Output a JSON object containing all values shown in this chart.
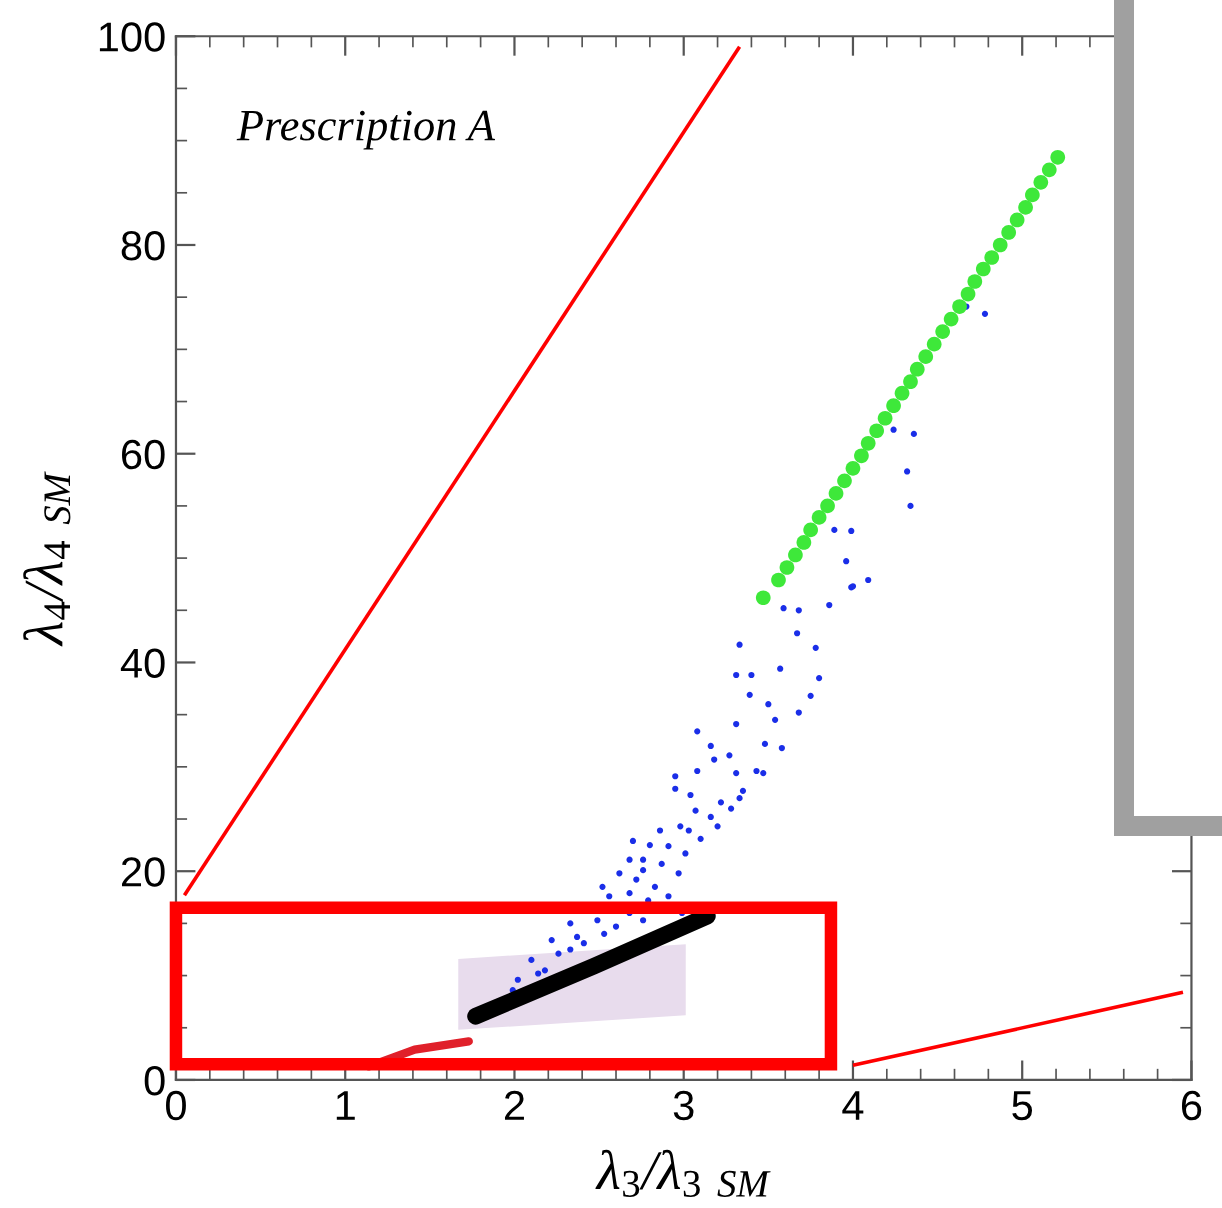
{
  "chart_data": {
    "type": "scatter",
    "xlabel": "λ$_{3}$/λ$_{3}$ $_{SM}$",
    "ylabel": "λ$_{4}$/λ$_{4}$ $_{SM}$",
    "annotations": [
      "Prescription A"
    ],
    "xlim": [
      0,
      6
    ],
    "ylim": [
      0,
      100
    ],
    "xticks": [
      0,
      {
        "value": 0.2,
        "label": null
      },
      {
        "value": 0.4,
        "label": null
      },
      {
        "value": 0.6,
        "label": null
      },
      {
        "value": 0.8,
        "label": null
      },
      1,
      {
        "value": 1.2,
        "label": null
      },
      {
        "value": 1.4,
        "label": null
      },
      {
        "value": 1.6,
        "label": null
      },
      {
        "value": 1.8,
        "label": null
      },
      2,
      {
        "value": 2.2,
        "label": null
      },
      {
        "value": 2.4,
        "label": null
      },
      {
        "value": 2.6,
        "label": null
      },
      {
        "value": 2.8,
        "label": null
      },
      3,
      {
        "value": 3.2,
        "label": null
      },
      {
        "value": 3.4,
        "label": null
      },
      {
        "value": 3.6,
        "label": null
      },
      {
        "value": 3.8,
        "label": null
      },
      4,
      {
        "value": 4.2,
        "label": null
      },
      {
        "value": 4.4,
        "label": null
      },
      {
        "value": 4.6,
        "label": null
      },
      {
        "value": 4.8,
        "label": null
      },
      5,
      {
        "value": 5.2,
        "label": null
      },
      {
        "value": 5.4,
        "label": null
      },
      {
        "value": 5.6,
        "label": null
      },
      {
        "value": 5.8,
        "label": null
      },
      6
    ],
    "yticks": [
      0,
      {
        "value": 5,
        "label": null
      },
      {
        "value": 10,
        "label": null
      },
      {
        "value": 15,
        "label": null
      },
      20,
      {
        "value": 25,
        "label": null
      },
      {
        "value": 30,
        "label": null
      },
      {
        "value": 35,
        "label": null
      },
      40,
      {
        "value": 45,
        "label": null
      },
      {
        "value": 50,
        "label": null
      },
      {
        "value": 55,
        "label": null
      },
      60,
      {
        "value": 65,
        "label": null
      },
      {
        "value": 70,
        "label": null
      },
      {
        "value": 75,
        "label": null
      },
      80,
      {
        "value": 85,
        "label": null
      },
      {
        "value": 90,
        "label": null
      },
      {
        "value": 95,
        "label": null
      },
      100
    ],
    "grid": false,
    "series": [
      {
        "type": "line",
        "color": "#ff0000",
        "x": [
          0.05,
          3.33
        ],
        "values": [
          17.7,
          99.0
        ]
      },
      {
        "type": "line",
        "color": "#ff0000",
        "x": [
          4.0,
          5.95
        ],
        "values": [
          1.4,
          8.4
        ]
      },
      {
        "type": "line",
        "color": "#e0202a",
        "x": [
          1.14,
          1.41,
          1.73
        ],
        "values": [
          1.3,
          2.9,
          3.7
        ]
      },
      {
        "type": "scatter",
        "color": "#1a2ee8",
        "x": [
          4.67,
          4.78,
          4.24,
          4.36,
          4.32,
          4.34,
          3.89,
          3.99,
          3.96,
          3.99,
          4.09,
          3.59,
          3.68,
          3.86,
          4.0,
          3.33,
          3.57,
          3.78,
          3.8,
          3.31,
          3.4,
          3.67,
          3.39,
          3.75,
          3.5,
          3.54,
          3.31,
          3.08,
          3.68,
          3.48,
          3.58,
          3.27,
          3.16,
          3.18,
          3.08,
          2.95,
          3.31,
          3.43,
          3.47,
          3.35,
          3.33,
          3.04,
          2.95,
          3.22,
          3.28,
          3.07,
          3.16,
          3.2,
          2.86,
          2.98,
          3.03,
          3.1,
          2.8,
          2.91,
          2.7,
          3.01,
          2.87,
          2.76,
          2.68,
          2.97,
          2.52,
          2.62,
          2.72,
          2.83,
          2.56,
          2.68,
          2.79,
          2.91,
          2.76,
          2.33,
          2.49,
          2.68,
          2.22,
          2.37,
          2.53,
          2.1,
          2.26,
          2.02,
          1.99,
          2.18,
          2.33,
          2.6,
          2.76,
          2.99,
          2.41,
          2.14
        ],
        "values": [
          74.1,
          73.4,
          62.3,
          61.9,
          58.3,
          55.0,
          52.7,
          52.6,
          49.7,
          47.2,
          47.9,
          45.2,
          45.0,
          45.5,
          47.3,
          41.7,
          39.4,
          41.4,
          38.5,
          38.8,
          38.8,
          42.8,
          36.9,
          36.8,
          36.0,
          34.5,
          34.1,
          33.4,
          35.2,
          32.2,
          31.8,
          31.1,
          32.0,
          30.7,
          29.6,
          29.1,
          29.4,
          29.6,
          29.4,
          27.7,
          27.0,
          27.3,
          27.9,
          26.6,
          26.0,
          25.8,
          25.2,
          24.3,
          23.9,
          24.3,
          23.9,
          23.1,
          22.5,
          22.4,
          22.9,
          21.7,
          20.7,
          21.1,
          21.1,
          19.8,
          18.5,
          19.8,
          19.2,
          18.5,
          17.6,
          17.9,
          17.2,
          17.6,
          20.1,
          15.0,
          15.3,
          16.0,
          13.4,
          13.7,
          14.0,
          11.5,
          12.1,
          9.6,
          8.6,
          10.5,
          12.5,
          14.7,
          15.3,
          16.0,
          13.1,
          10.2
        ]
      },
      {
        "type": "line",
        "color": "#000000",
        "x": [
          1.77,
          2.47,
          3.14
        ],
        "values": [
          6.1,
          10.9,
          15.7
        ]
      },
      {
        "type": "scatter",
        "color": "#3ee83a",
        "x": [
          3.47,
          3.56,
          3.61,
          3.66,
          3.71,
          3.75,
          3.8,
          3.85,
          3.9,
          3.95,
          4.0,
          4.05,
          4.09,
          4.14,
          4.19,
          4.24,
          4.29,
          4.34,
          4.38,
          4.43,
          4.48,
          4.53,
          4.58,
          4.63,
          4.68,
          4.72,
          4.77,
          4.82,
          4.87,
          4.92,
          4.97,
          5.02,
          5.06,
          5.11,
          5.16,
          5.21
        ],
        "values": [
          46.2,
          47.9,
          49.1,
          50.3,
          51.5,
          52.7,
          53.9,
          55.0,
          56.2,
          57.4,
          58.6,
          59.8,
          61.0,
          62.2,
          63.4,
          64.6,
          65.8,
          66.9,
          68.1,
          69.3,
          70.5,
          71.7,
          72.9,
          74.1,
          75.3,
          76.5,
          77.7,
          78.8,
          80.0,
          81.2,
          82.4,
          83.6,
          84.8,
          86.0,
          87.2,
          88.4
        ]
      }
    ]
  }
}
